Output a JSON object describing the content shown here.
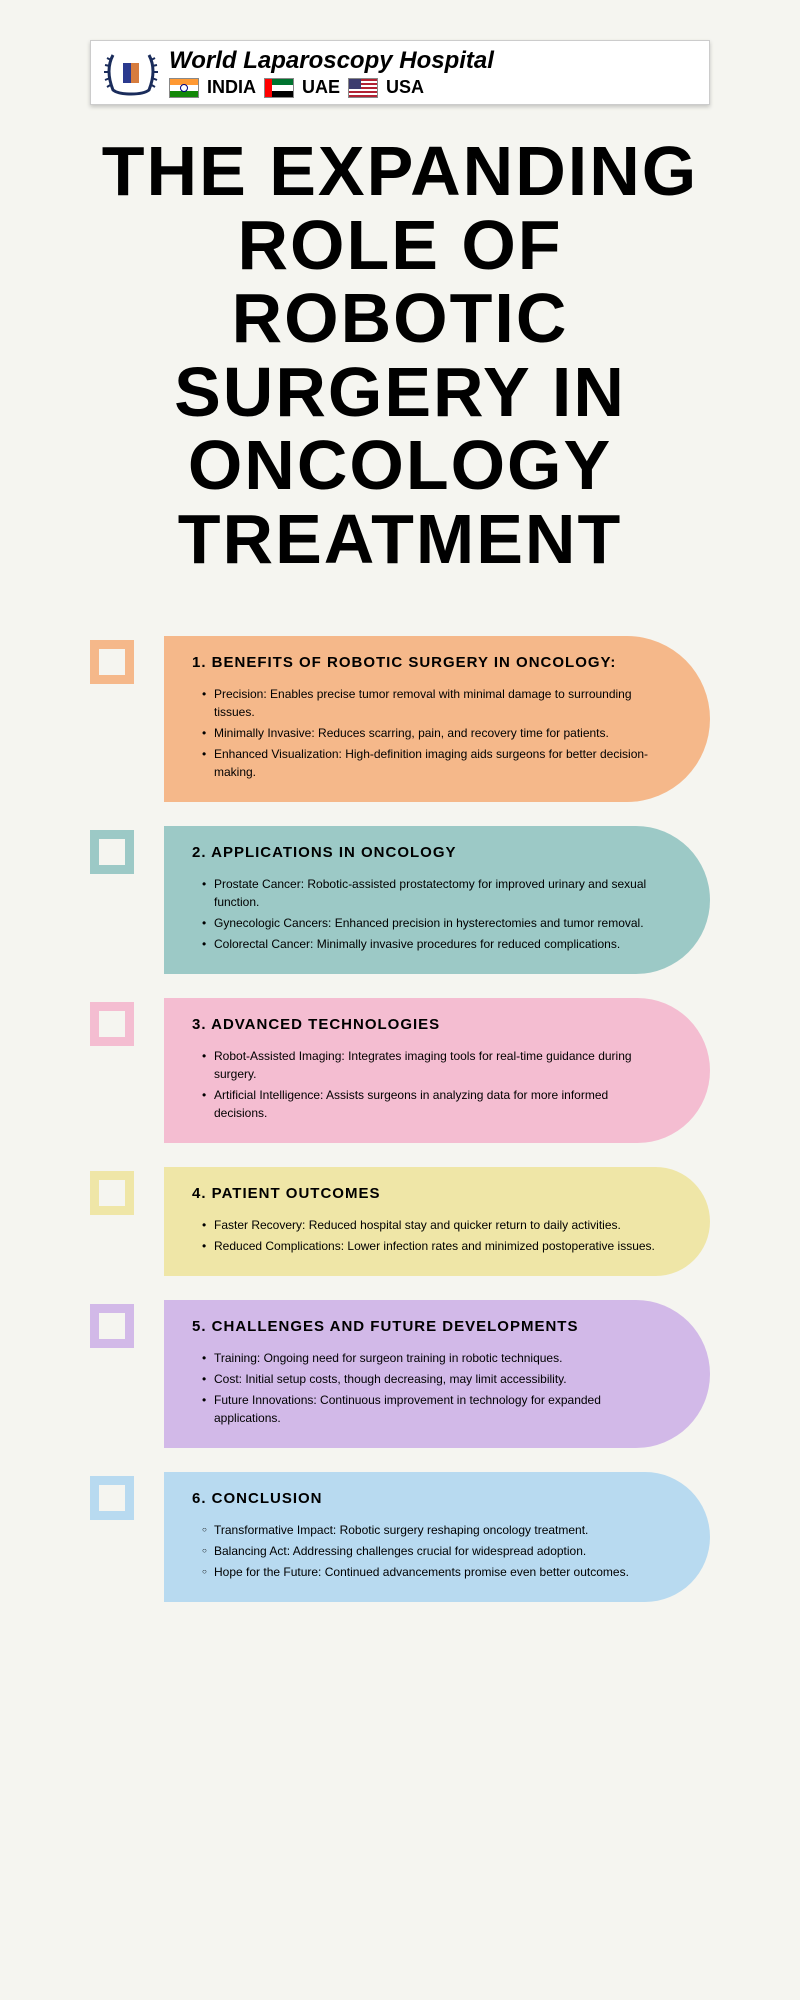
{
  "logo": {
    "title": "World Laparoscopy Hospital",
    "countries": [
      "INDIA",
      "UAE",
      "USA"
    ]
  },
  "main_title": "THE EXPANDING ROLE OF ROBOTIC SURGERY IN ONCOLOGY TREATMENT",
  "colors": {
    "background": "#f5f5f0",
    "title_text": "#000000"
  },
  "sections": [
    {
      "number": "1",
      "title": "BENEFITS OF ROBOTIC SURGERY IN ONCOLOGY:",
      "color": "#f5b88a",
      "bullet_style": "disc",
      "items": [
        "Precision: Enables precise tumor removal with minimal damage to surrounding tissues.",
        "Minimally Invasive: Reduces scarring, pain, and recovery time for patients.",
        "Enhanced Visualization: High-definition imaging aids surgeons for better decision-making."
      ]
    },
    {
      "number": "2",
      "title": "APPLICATIONS IN ONCOLOGY",
      "color": "#9cc9c6",
      "bullet_style": "disc",
      "items": [
        "Prostate Cancer: Robotic-assisted prostatectomy for improved urinary and sexual function.",
        "Gynecologic Cancers: Enhanced precision in hysterectomies and tumor removal.",
        "Colorectal Cancer: Minimally invasive procedures for reduced complications."
      ]
    },
    {
      "number": "3",
      "title": "ADVANCED TECHNOLOGIES",
      "color": "#f4bdd1",
      "bullet_style": "disc",
      "items": [
        "Robot-Assisted Imaging: Integrates imaging tools for real-time guidance during surgery.",
        "Artificial Intelligence: Assists surgeons in analyzing data for more informed decisions."
      ]
    },
    {
      "number": "4",
      "title": "PATIENT OUTCOMES",
      "color": "#efe6a7",
      "bullet_style": "disc",
      "items": [
        "Faster Recovery: Reduced hospital stay and quicker return to daily activities.",
        "Reduced Complications: Lower infection rates and minimized postoperative issues."
      ]
    },
    {
      "number": "5",
      "title": "CHALLENGES AND FUTURE DEVELOPMENTS",
      "color": "#d2b9e8",
      "bullet_style": "disc",
      "items": [
        "Training: Ongoing need for surgeon training in robotic techniques.",
        "Cost: Initial setup costs, though decreasing, may limit accessibility.",
        "Future Innovations: Continuous improvement in technology for expanded applications."
      ]
    },
    {
      "number": "6",
      "title": "CONCLUSION",
      "color": "#b8daf0",
      "bullet_style": "circle",
      "items": [
        "Transformative Impact: Robotic surgery reshaping oncology treatment.",
        "Balancing Act: Addressing challenges crucial for widespread adoption.",
        "Hope for the Future: Continued advancements promise even better outcomes."
      ]
    }
  ]
}
